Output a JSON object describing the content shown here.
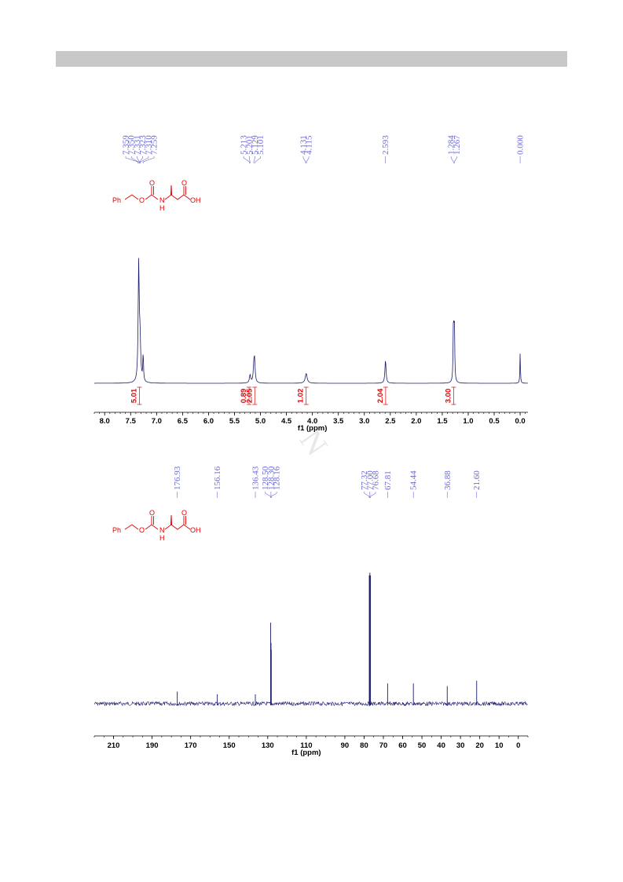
{
  "watermark": "N",
  "structure": {
    "ph": "Ph",
    "o1": "O",
    "o2": "O",
    "n": "N",
    "h": "H",
    "o3": "O",
    "oh": "OH"
  },
  "colors": {
    "spectrum": "#1a1a6e",
    "peak_label": "#6b6bd6",
    "integral": "#e00000",
    "structure": "#e00000"
  },
  "chart_data": [
    {
      "type": "line",
      "nucleus": "1H",
      "xlabel": "f1 (ppm)",
      "xlim": [
        8.2,
        -0.15
      ],
      "x_ticks": [
        "8.0",
        "7.5",
        "7.0",
        "6.5",
        "6.0",
        "5.5",
        "5.0",
        "4.5",
        "4.0",
        "3.5",
        "3.0",
        "2.5",
        "2.0",
        "1.5",
        "1.0",
        "0.5",
        "0.0"
      ],
      "peak_labels": [
        {
          "ppm": 7.359,
          "label": "7.359"
        },
        {
          "ppm": 7.35,
          "label": "7.350"
        },
        {
          "ppm": 7.331,
          "label": "7.331"
        },
        {
          "ppm": 7.323,
          "label": "7.323"
        },
        {
          "ppm": 7.31,
          "label": "7.310"
        },
        {
          "ppm": 7.259,
          "label": "7.259"
        },
        {
          "ppm": 5.213,
          "label": "5.213"
        },
        {
          "ppm": 5.201,
          "label": "5.201"
        },
        {
          "ppm": 5.129,
          "label": "5.129"
        },
        {
          "ppm": 5.101,
          "label": "5.101"
        },
        {
          "ppm": 4.131,
          "label": "4.131"
        },
        {
          "ppm": 4.115,
          "label": "4.115"
        },
        {
          "ppm": 2.593,
          "label": "2.593"
        },
        {
          "ppm": 1.284,
          "label": "1.284"
        },
        {
          "ppm": 1.267,
          "label": "1.267"
        },
        {
          "ppm": 0.0,
          "label": "0.000"
        }
      ],
      "peaks": [
        {
          "ppm": 7.345,
          "height": 1.0,
          "width": 0.012
        },
        {
          "ppm": 7.32,
          "height": 0.35,
          "width": 0.015
        },
        {
          "ppm": 7.259,
          "height": 0.24,
          "width": 0.008
        },
        {
          "ppm": 5.2,
          "height": 0.07,
          "width": 0.015
        },
        {
          "ppm": 5.115,
          "height": 0.2,
          "width": 0.014
        },
        {
          "ppm": 5.13,
          "height": 0.1,
          "width": 0.012
        },
        {
          "ppm": 4.12,
          "height": 0.085,
          "width": 0.022
        },
        {
          "ppm": 2.593,
          "height": 0.2,
          "width": 0.013
        },
        {
          "ppm": 1.284,
          "height": 0.52,
          "width": 0.008
        },
        {
          "ppm": 1.267,
          "height": 0.52,
          "width": 0.008
        },
        {
          "ppm": 0.0,
          "height": 0.27,
          "width": 0.006
        }
      ],
      "integrals": [
        {
          "ppm": 7.33,
          "value": "5.01"
        },
        {
          "ppm": 5.22,
          "value": "0.89"
        },
        {
          "ppm": 5.11,
          "value": "2.05"
        },
        {
          "ppm": 4.12,
          "value": "1.02"
        },
        {
          "ppm": 2.59,
          "value": "2.04"
        },
        {
          "ppm": 1.28,
          "value": "3.00"
        }
      ]
    },
    {
      "type": "line",
      "nucleus": "13C",
      "xlabel": "f1 (ppm)",
      "xlim": [
        220,
        -5
      ],
      "x_ticks": [
        "210",
        "190",
        "170",
        "150",
        "130",
        "110",
        "90",
        "80",
        "70",
        "60",
        "50",
        "40",
        "30",
        "20",
        "10",
        "0"
      ],
      "peak_labels": [
        {
          "ppm": 176.93,
          "label": "176.93"
        },
        {
          "ppm": 156.16,
          "label": "156.16"
        },
        {
          "ppm": 136.43,
          "label": "136.43"
        },
        {
          "ppm": 128.5,
          "label": "128.50"
        },
        {
          "ppm": 128.3,
          "label": "128.30"
        },
        {
          "ppm": 128.16,
          "label": "128.16"
        },
        {
          "ppm": 77.32,
          "label": "77.32"
        },
        {
          "ppm": 77.0,
          "label": "77.00"
        },
        {
          "ppm": 76.68,
          "label": "76.68"
        },
        {
          "ppm": 67.81,
          "label": "67.81"
        },
        {
          "ppm": 54.44,
          "label": "54.44"
        },
        {
          "ppm": 36.88,
          "label": "36.88"
        },
        {
          "ppm": 21.6,
          "label": "21.60"
        }
      ],
      "peaks": [
        {
          "ppm": 176.93,
          "height": 0.09
        },
        {
          "ppm": 156.16,
          "height": 0.07
        },
        {
          "ppm": 136.43,
          "height": 0.07
        },
        {
          "ppm": 128.5,
          "height": 0.6
        },
        {
          "ppm": 128.3,
          "height": 0.45
        },
        {
          "ppm": 128.16,
          "height": 0.4
        },
        {
          "ppm": 77.32,
          "height": 0.95
        },
        {
          "ppm": 77.0,
          "height": 0.97
        },
        {
          "ppm": 76.68,
          "height": 0.95
        },
        {
          "ppm": 67.81,
          "height": 0.15
        },
        {
          "ppm": 54.44,
          "height": 0.15
        },
        {
          "ppm": 36.88,
          "height": 0.13
        },
        {
          "ppm": 21.6,
          "height": 0.17
        }
      ]
    }
  ]
}
